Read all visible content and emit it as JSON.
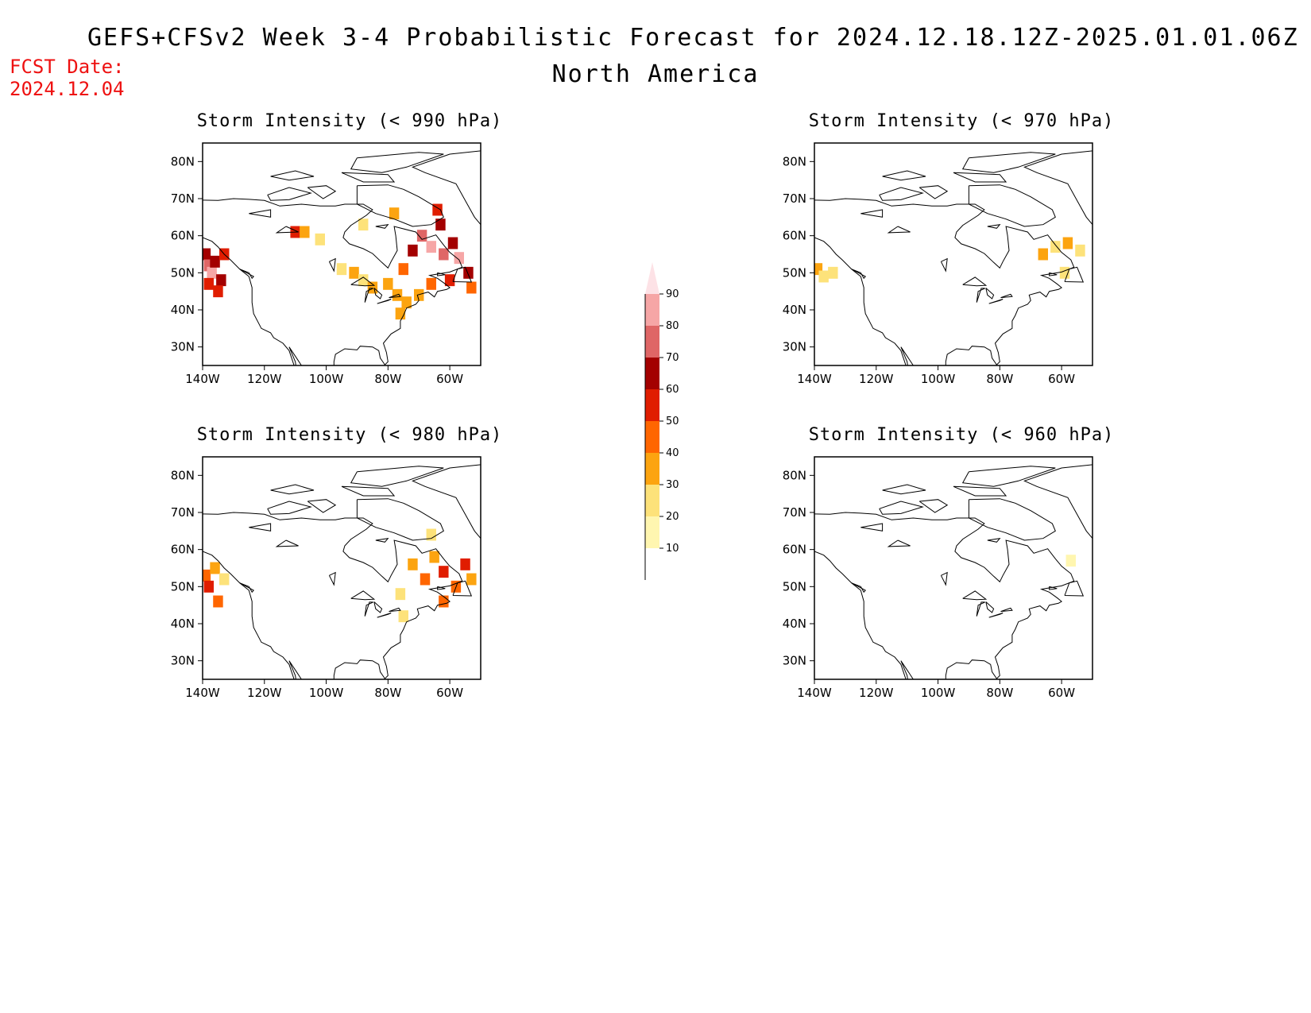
{
  "header": {
    "title": "GEFS+CFSv2 Week 3-4 Probabilistic Forecast for 2024.12.18.12Z-2025.01.01.06Z",
    "region": "North America",
    "fcst_label": "FCST Date:",
    "fcst_date": "2024.12.04"
  },
  "colors": {
    "levels": [
      "#fff6b0",
      "#fde27a",
      "#fca410",
      "#ff6600",
      "#e01d00",
      "#a30000",
      "#df6666",
      "#f6a6a6",
      "#fde2e6"
    ],
    "text_red": "#ee1111"
  },
  "colorbar": {
    "labels": [
      "10",
      "20",
      "30",
      "40",
      "50",
      "60",
      "70",
      "80",
      "90"
    ]
  },
  "axes": {
    "lat_labels": [
      "80N",
      "70N",
      "60N",
      "50N",
      "40N",
      "30N"
    ],
    "lon_labels": [
      "140W",
      "120W",
      "100W",
      "80W",
      "60W"
    ]
  },
  "panels": [
    {
      "title": "Storm Intensity (< 990 hPa)",
      "cells": [
        {
          "lon": -139,
          "lat": 55,
          "lvl": 5
        },
        {
          "lon": -138,
          "lat": 52,
          "lvl": 6
        },
        {
          "lon": -137,
          "lat": 50,
          "lvl": 7
        },
        {
          "lon": -136,
          "lat": 53,
          "lvl": 5
        },
        {
          "lon": -134,
          "lat": 48,
          "lvl": 5
        },
        {
          "lon": -133,
          "lat": 55,
          "lvl": 4
        },
        {
          "lon": -135,
          "lat": 45,
          "lvl": 4
        },
        {
          "lon": -138,
          "lat": 47,
          "lvl": 4
        },
        {
          "lon": -110,
          "lat": 61,
          "lvl": 4
        },
        {
          "lon": -107,
          "lat": 61,
          "lvl": 2
        },
        {
          "lon": -102,
          "lat": 59,
          "lvl": 1
        },
        {
          "lon": -95,
          "lat": 51,
          "lvl": 1
        },
        {
          "lon": -91,
          "lat": 50,
          "lvl": 2
        },
        {
          "lon": -88,
          "lat": 48,
          "lvl": 1
        },
        {
          "lon": -85,
          "lat": 46,
          "lvl": 2
        },
        {
          "lon": -80,
          "lat": 47,
          "lvl": 2
        },
        {
          "lon": -77,
          "lat": 44,
          "lvl": 2
        },
        {
          "lon": -74,
          "lat": 42,
          "lvl": 2
        },
        {
          "lon": -76,
          "lat": 39,
          "lvl": 2
        },
        {
          "lon": -88,
          "lat": 63,
          "lvl": 1
        },
        {
          "lon": -78,
          "lat": 66,
          "lvl": 2
        },
        {
          "lon": -75,
          "lat": 51,
          "lvl": 3
        },
        {
          "lon": -72,
          "lat": 56,
          "lvl": 5
        },
        {
          "lon": -69,
          "lat": 60,
          "lvl": 6
        },
        {
          "lon": -66,
          "lat": 57,
          "lvl": 7
        },
        {
          "lon": -63,
          "lat": 63,
          "lvl": 5
        },
        {
          "lon": -62,
          "lat": 55,
          "lvl": 6
        },
        {
          "lon": -59,
          "lat": 58,
          "lvl": 5
        },
        {
          "lon": -57,
          "lat": 54,
          "lvl": 7
        },
        {
          "lon": -54,
          "lat": 50,
          "lvl": 5
        },
        {
          "lon": -60,
          "lat": 48,
          "lvl": 4
        },
        {
          "lon": -66,
          "lat": 47,
          "lvl": 3
        },
        {
          "lon": -70,
          "lat": 44,
          "lvl": 2
        },
        {
          "lon": -64,
          "lat": 67,
          "lvl": 4
        },
        {
          "lon": -53,
          "lat": 46,
          "lvl": 3
        }
      ]
    },
    {
      "title": "Storm Intensity (< 980 hPa)",
      "cells": [
        {
          "lon": -139,
          "lat": 53,
          "lvl": 3
        },
        {
          "lon": -138,
          "lat": 50,
          "lvl": 4
        },
        {
          "lon": -136,
          "lat": 55,
          "lvl": 2
        },
        {
          "lon": -135,
          "lat": 46,
          "lvl": 3
        },
        {
          "lon": -133,
          "lat": 52,
          "lvl": 1
        },
        {
          "lon": -76,
          "lat": 48,
          "lvl": 1
        },
        {
          "lon": -75,
          "lat": 42,
          "lvl": 1
        },
        {
          "lon": -72,
          "lat": 56,
          "lvl": 2
        },
        {
          "lon": -68,
          "lat": 52,
          "lvl": 3
        },
        {
          "lon": -65,
          "lat": 58,
          "lvl": 2
        },
        {
          "lon": -62,
          "lat": 54,
          "lvl": 4
        },
        {
          "lon": -58,
          "lat": 50,
          "lvl": 3
        },
        {
          "lon": -55,
          "lat": 56,
          "lvl": 4
        },
        {
          "lon": -62,
          "lat": 46,
          "lvl": 3
        },
        {
          "lon": -66,
          "lat": 64,
          "lvl": 1
        },
        {
          "lon": -53,
          "lat": 52,
          "lvl": 2
        }
      ]
    },
    {
      "title": "Storm Intensity (< 970 hPa)",
      "cells": [
        {
          "lon": -139,
          "lat": 51,
          "lvl": 2
        },
        {
          "lon": -137,
          "lat": 49,
          "lvl": 1
        },
        {
          "lon": -134,
          "lat": 50,
          "lvl": 1
        },
        {
          "lon": -66,
          "lat": 55,
          "lvl": 2
        },
        {
          "lon": -62,
          "lat": 57,
          "lvl": 1
        },
        {
          "lon": -58,
          "lat": 58,
          "lvl": 2
        },
        {
          "lon": -54,
          "lat": 56,
          "lvl": 1
        },
        {
          "lon": -59,
          "lat": 50,
          "lvl": 1
        }
      ]
    },
    {
      "title": "Storm Intensity (< 960 hPa)",
      "cells": [
        {
          "lon": -57,
          "lat": 57,
          "lvl": 0
        }
      ]
    }
  ]
}
